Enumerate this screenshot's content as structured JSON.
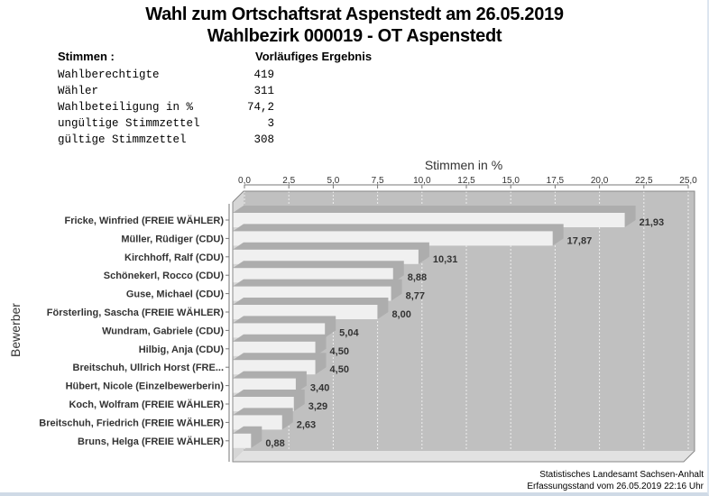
{
  "header": {
    "title_line1": "Wahl zum Ortschaftsrat Aspenstedt am 26.05.2019",
    "title_line2": "Wahlbezirk 000019 - OT Aspenstedt"
  },
  "stats": {
    "heading_left": "Stimmen  :",
    "heading_right": "Vorläufiges Ergebnis",
    "rows": [
      {
        "label": "Wahlberechtigte",
        "value": "419"
      },
      {
        "label": "Wähler",
        "value": "311"
      },
      {
        "label": "Wahlbeteiligung in %",
        "value": "74,2"
      },
      {
        "label": "ungültige Stimmzettel",
        "value": "3"
      },
      {
        "label": "gültige Stimmzettel",
        "value": "308"
      }
    ]
  },
  "chart_data": {
    "type": "bar",
    "orientation": "horizontal",
    "xlabel": "Stimmen in %",
    "ylabel": "Bewerber",
    "xlim": [
      0,
      25
    ],
    "xticks": [
      "0,0",
      "2,5",
      "5,0",
      "7,5",
      "10,0",
      "12,5",
      "15,0",
      "17,5",
      "20,0",
      "22,5",
      "25,0"
    ],
    "tick_values": [
      0,
      2.5,
      5,
      7.5,
      10,
      12.5,
      15,
      17.5,
      20,
      22.5,
      25
    ],
    "grid": true,
    "categories": [
      "Fricke, Winfried (FREIE WÄHLER)",
      "Müller, Rüdiger (CDU)",
      "Kirchhoff, Ralf (CDU)",
      "Schönekerl, Rocco (CDU)",
      "Guse, Michael (CDU)",
      "Försterling, Sascha (FREIE WÄHLER)",
      "Wundram, Gabriele (CDU)",
      "Hilbig, Anja (CDU)",
      "Breitschuh, Ullrich Horst (FRE...",
      "Hübert, Nicole (Einzelbewerberin)",
      "Koch, Wolfram (FREIE WÄHLER)",
      "Breitschuh, Friedrich (FREIE WÄHLER)",
      "Bruns, Helga (FREIE WÄHLER)"
    ],
    "values": [
      21.93,
      17.87,
      10.31,
      8.88,
      8.77,
      8.0,
      5.04,
      4.5,
      4.5,
      3.4,
      3.29,
      2.63,
      0.88
    ],
    "value_labels": [
      "21,93",
      "17,87",
      "10,31",
      "8,88",
      "8,77",
      "8,00",
      "5,04",
      "4,50",
      "4,50",
      "3,40",
      "3,29",
      "2,63",
      "0,88"
    ],
    "colors": {
      "plot_bg": "#c0c0c0",
      "bar": "#f0f0f0",
      "shadow": "#adadad",
      "wall": "#d6d6d6",
      "grid": "#eeeeee",
      "label": "#333333"
    }
  },
  "footer": {
    "line1": "Statistisches Landesamt Sachsen-Anhalt",
    "line2": "Erfassungsstand vom 26.05.2019 22:16 Uhr"
  }
}
